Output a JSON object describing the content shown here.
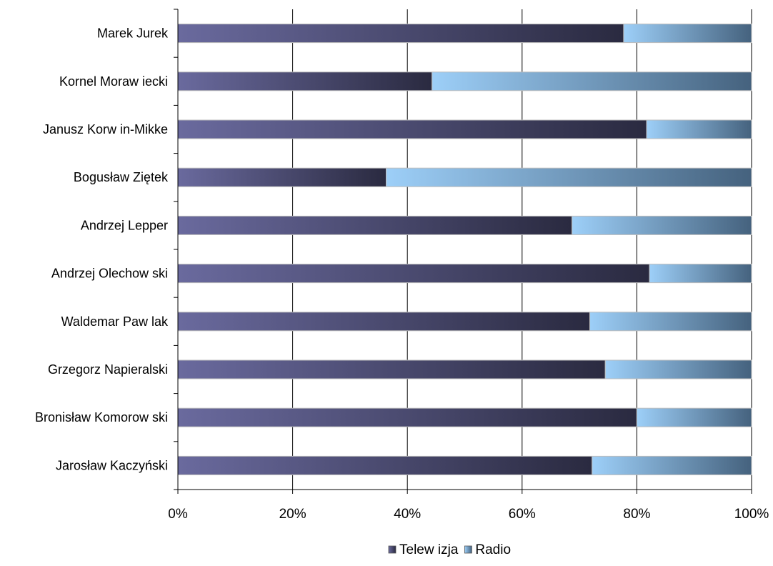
{
  "chart_data": {
    "type": "bar",
    "orientation": "horizontal",
    "stacked": "percent",
    "categories": [
      "Marek Jurek",
      "Kornel Moraw iecki",
      "Janusz Korw in-Mikke",
      "Bogusław  Ziętek",
      "Andrzej Lepper",
      "Andrzej Olechow ski",
      "Waldemar Paw lak",
      "Grzegorz Napieralski",
      "Bronisław  Komorow ski",
      "Jarosław  Kaczyński"
    ],
    "series": [
      {
        "name": "Telew izja",
        "values": [
          77.7,
          44.3,
          81.7,
          36.3,
          68.7,
          82.2,
          71.8,
          74.5,
          80.0,
          72.2
        ],
        "gradient": [
          "#6a6a9e",
          "#2a2a40"
        ]
      },
      {
        "name": "Radio",
        "values": [
          22.3,
          55.7,
          18.3,
          63.7,
          31.3,
          17.8,
          28.2,
          25.5,
          20.0,
          27.8
        ],
        "gradient": [
          "#9dcff8",
          "#45627e"
        ]
      }
    ],
    "x_ticks": [
      "0%",
      "20%",
      "40%",
      "60%",
      "80%",
      "100%"
    ],
    "xlim": [
      0,
      100
    ],
    "grid": "vertical",
    "legend_position": "bottom"
  }
}
